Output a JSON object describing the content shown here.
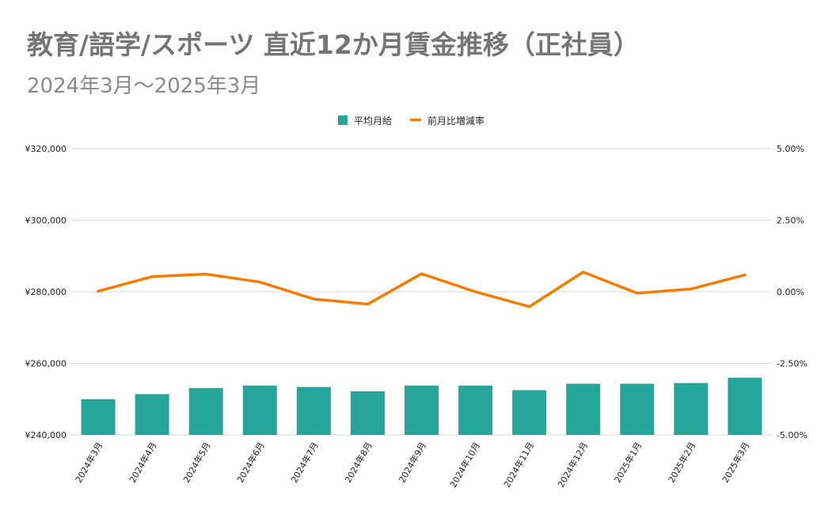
{
  "title": "教育/語学/スポーツ 直近12か月賃金推移（正社員）",
  "subtitle": "2024年3月～2025年3月",
  "chart_data": {
    "type": "bar",
    "categories": [
      "2024年3月",
      "2024年4月",
      "2024年5月",
      "2024年6月",
      "2024年7月",
      "2024年8月",
      "2024年9月",
      "2024年10月",
      "2024年11月",
      "2024年12月",
      "2025年1月",
      "2025年2月",
      "2025年3月"
    ],
    "series": [
      {
        "name": "平均月給",
        "type": "bar",
        "axis": "left",
        "color": "#26a69a",
        "values": [
          250000,
          251400,
          253100,
          253800,
          253400,
          252200,
          253800,
          253800,
          252500,
          254300,
          254300,
          254500,
          256000
        ]
      },
      {
        "name": "前月比増減率",
        "type": "line",
        "axis": "right",
        "color": "#f57c00",
        "values": [
          0.02,
          0.53,
          0.62,
          0.34,
          -0.25,
          -0.43,
          0.63,
          0.0,
          -0.52,
          0.69,
          -0.05,
          0.1,
          0.59
        ]
      }
    ],
    "y_left": {
      "min": 240000,
      "max": 320000,
      "ticks": [
        "¥240,000",
        "¥260,000",
        "¥280,000",
        "¥300,000",
        "¥320,000"
      ]
    },
    "y_right": {
      "min": -5,
      "max": 5,
      "ticks": [
        "-5.00%",
        "-2.50%",
        "0.00%",
        "2.50%",
        "5.00%"
      ]
    },
    "legend_position": "top-center",
    "colors": {
      "bar": "#26a69a",
      "line": "#f57c00",
      "grid": "#d9d9d9"
    }
  }
}
